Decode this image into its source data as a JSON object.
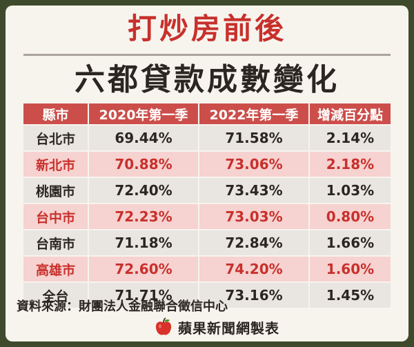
{
  "title": "打炒房前後",
  "subtitle": "六都貸款成數變化",
  "chart_data": {
    "type": "table",
    "columns": [
      "縣市",
      "2020年第一季",
      "2022年第一季",
      "增減百分點"
    ],
    "rows": [
      [
        "台北市",
        "69.44%",
        "71.58%",
        "2.14%"
      ],
      [
        "新北市",
        "70.88%",
        "73.06%",
        "2.18%"
      ],
      [
        "桃園市",
        "72.40%",
        "73.43%",
        "1.03%"
      ],
      [
        "台中市",
        "72.23%",
        "73.03%",
        "0.80%"
      ],
      [
        "台南市",
        "71.18%",
        "72.84%",
        "1.66%"
      ],
      [
        "高雄市",
        "72.60%",
        "74.20%",
        "1.60%"
      ],
      [
        "全台",
        "71.71%",
        "73.16%",
        "1.45%"
      ]
    ]
  },
  "source": "資料來源：財團法人金融聯合徵信中心",
  "brand": "蘋果新聞網製表",
  "colors": {
    "title_red": "#c8302c",
    "header_bg": "#cc4e4a",
    "row_pink": "#f6d2d0",
    "row_grey": "#e9e6e1",
    "outer_bg": "#3f4a2c"
  },
  "icons": {
    "brand_logo": "apple-icon"
  }
}
